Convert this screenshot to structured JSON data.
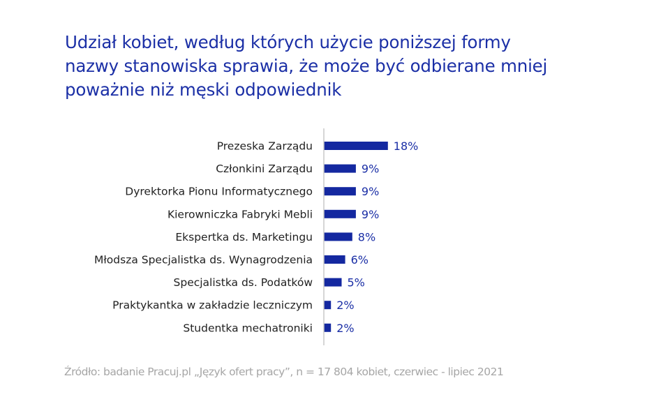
{
  "chart_data": {
    "type": "bar",
    "orientation": "horizontal",
    "title_lines": [
      "Udział kobiet, według których użycie poniższej formy",
      "nazwy stanowiska sprawia, że może być odbierane mniej",
      "poważnie niż męski odpowiednik"
    ],
    "categories": [
      "Prezeska Zarządu",
      "Członkini Zarządu",
      "Dyrektorka Pionu Informatycznego",
      "Kierowniczka Fabryki Mebli",
      "Ekspertka ds. Marketingu",
      "Młodsza Specjalistka ds. Wynagrodzenia",
      "Specjalistka ds. Podatków",
      "Praktykantka w zakładzie leczniczym",
      "Studentka mechatroniki"
    ],
    "values": [
      18,
      9,
      9,
      9,
      8,
      6,
      5,
      2,
      2
    ],
    "data_labels": [
      "18%",
      "9%",
      "9%",
      "9%",
      "8%",
      "6%",
      "5%",
      "2%",
      "2%"
    ],
    "unit": "%",
    "grid": false,
    "legend": "none",
    "colors": {
      "bar": "#1428a0",
      "title": "#1b2fa6",
      "label": "#1b2fa6",
      "axis": "#c8c8c8",
      "source": "#a6a6a6"
    }
  },
  "source": "Źródło: badanie Pracuj.pl „Język ofert pracy”, n = 17 804 kobiet, czerwiec - lipiec 2021"
}
